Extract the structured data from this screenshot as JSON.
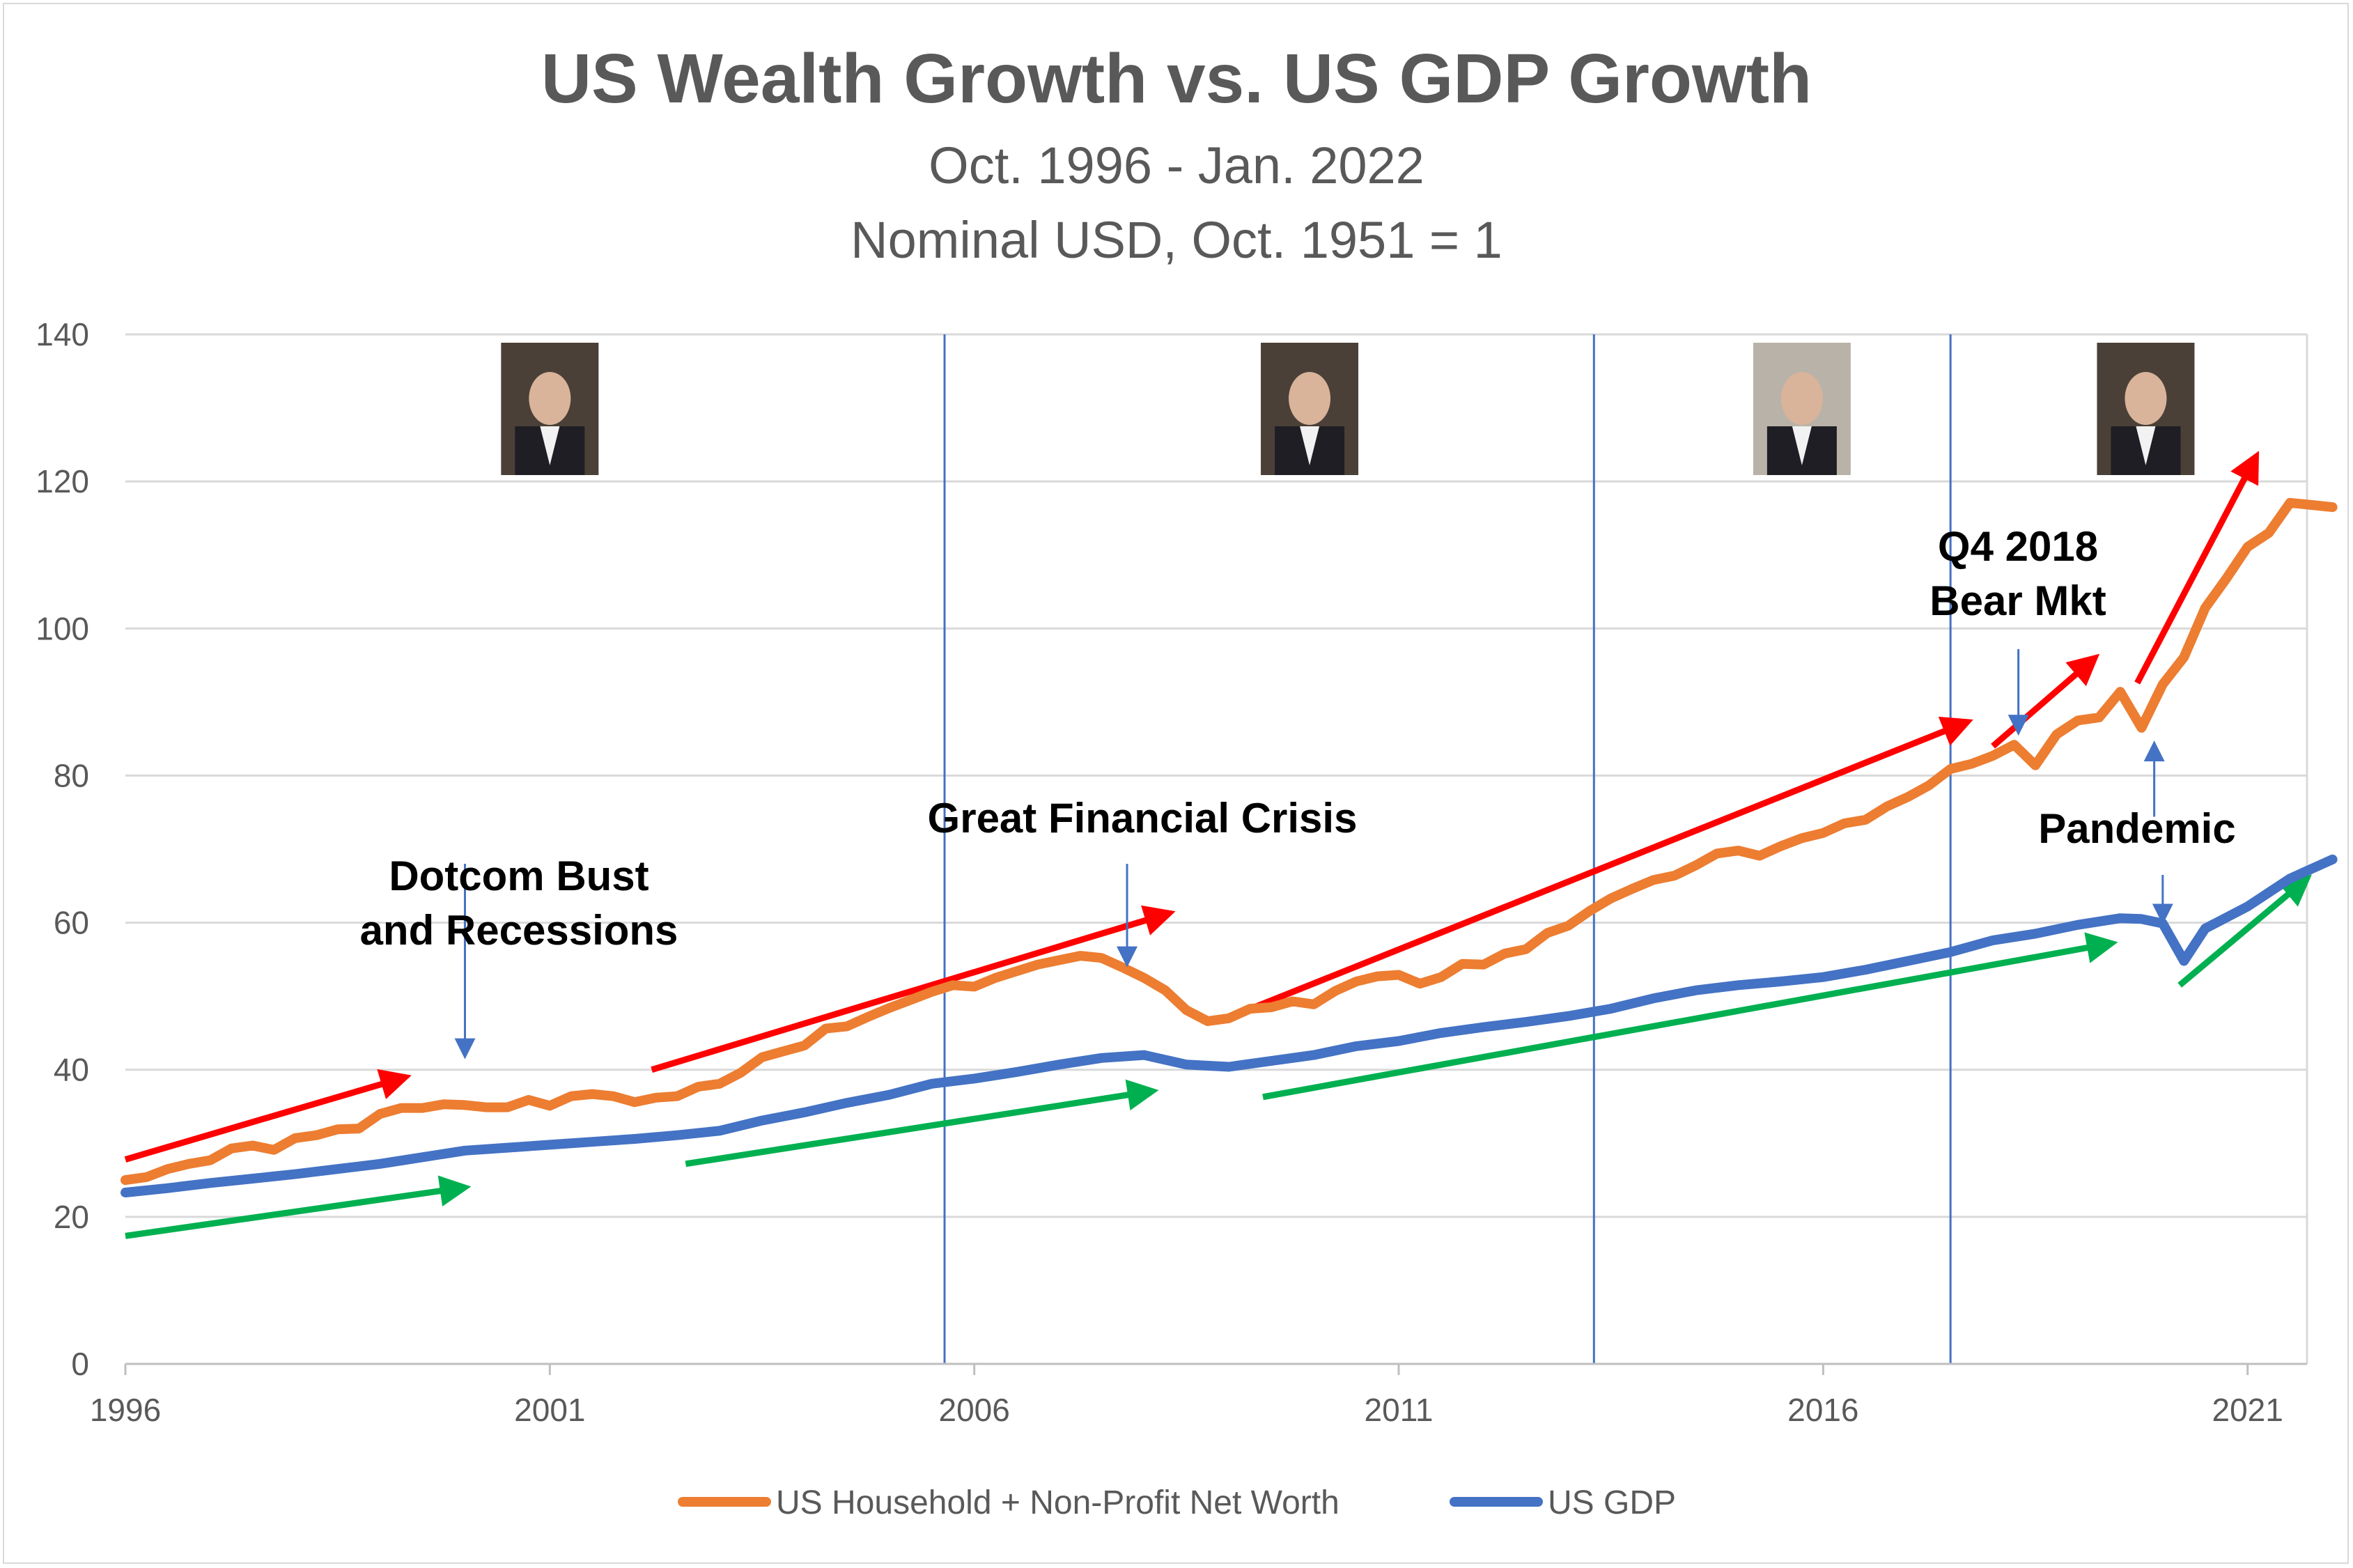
{
  "chart_data": {
    "type": "line",
    "title": "US Wealth Growth vs. US GDP Growth",
    "subtitle_lines": [
      "Oct. 1996 - Jan. 2022",
      "Nominal USD, Oct. 1951 = 1"
    ],
    "xlabel": "",
    "ylabel": "",
    "xlim": [
      1996.0,
      2021.7
    ],
    "ylim": [
      0,
      140
    ],
    "x_ticks": [
      1996,
      2001,
      2006,
      2011,
      2016,
      2021
    ],
    "x_tick_labels": [
      "1996",
      "2001",
      "2006",
      "2011",
      "2016",
      "2021"
    ],
    "y_ticks": [
      0,
      20,
      40,
      60,
      80,
      100,
      120,
      140
    ],
    "y_tick_labels": [
      "0",
      "20",
      "40",
      "60",
      "80",
      "100",
      "120",
      "140"
    ],
    "grid": "horizontal",
    "legend_position": "bottom",
    "era_dividers": [
      2005.65,
      2013.3,
      2017.5
    ],
    "series": [
      {
        "name": "US Household + Non-Profit Net Worth",
        "color": "#ED7D31",
        "points": [
          [
            1996.0,
            25.0
          ],
          [
            1996.25,
            25.4
          ],
          [
            1996.5,
            26.5
          ],
          [
            1996.75,
            27.2
          ],
          [
            1997.0,
            27.7
          ],
          [
            1997.25,
            29.3
          ],
          [
            1997.5,
            29.7
          ],
          [
            1997.75,
            29.1
          ],
          [
            1998.0,
            30.7
          ],
          [
            1998.25,
            31.1
          ],
          [
            1998.5,
            31.9
          ],
          [
            1998.75,
            32.0
          ],
          [
            1999.0,
            34.0
          ],
          [
            1999.25,
            34.8
          ],
          [
            1999.5,
            34.8
          ],
          [
            1999.75,
            35.3
          ],
          [
            2000.0,
            35.2
          ],
          [
            2000.25,
            34.9
          ],
          [
            2000.5,
            34.9
          ],
          [
            2000.75,
            35.9
          ],
          [
            2001.0,
            35.1
          ],
          [
            2001.25,
            36.4
          ],
          [
            2001.5,
            36.7
          ],
          [
            2001.75,
            36.4
          ],
          [
            2002.0,
            35.6
          ],
          [
            2002.25,
            36.2
          ],
          [
            2002.5,
            36.4
          ],
          [
            2002.75,
            37.7
          ],
          [
            2003.0,
            38.1
          ],
          [
            2003.25,
            39.6
          ],
          [
            2003.5,
            41.7
          ],
          [
            2003.75,
            42.5
          ],
          [
            2004.0,
            43.3
          ],
          [
            2004.25,
            45.6
          ],
          [
            2004.5,
            45.9
          ],
          [
            2004.75,
            47.2
          ],
          [
            2005.0,
            48.4
          ],
          [
            2005.25,
            49.5
          ],
          [
            2005.5,
            50.6
          ],
          [
            2005.75,
            51.5
          ],
          [
            2006.0,
            51.3
          ],
          [
            2006.25,
            52.5
          ],
          [
            2006.5,
            53.4
          ],
          [
            2006.75,
            54.3
          ],
          [
            2007.0,
            54.9
          ],
          [
            2007.25,
            55.5
          ],
          [
            2007.5,
            55.2
          ],
          [
            2007.75,
            53.9
          ],
          [
            2008.0,
            52.5
          ],
          [
            2008.25,
            50.8
          ],
          [
            2008.5,
            48.1
          ],
          [
            2008.75,
            46.6
          ],
          [
            2009.0,
            47.0
          ],
          [
            2009.25,
            48.3
          ],
          [
            2009.5,
            48.5
          ],
          [
            2009.75,
            49.3
          ],
          [
            2010.0,
            48.9
          ],
          [
            2010.25,
            50.7
          ],
          [
            2010.5,
            52.0
          ],
          [
            2010.75,
            52.7
          ],
          [
            2011.0,
            52.9
          ],
          [
            2011.25,
            51.7
          ],
          [
            2011.5,
            52.6
          ],
          [
            2011.75,
            54.4
          ],
          [
            2012.0,
            54.3
          ],
          [
            2012.25,
            55.8
          ],
          [
            2012.5,
            56.4
          ],
          [
            2012.75,
            58.6
          ],
          [
            2013.0,
            59.6
          ],
          [
            2013.25,
            61.6
          ],
          [
            2013.5,
            63.3
          ],
          [
            2013.75,
            64.6
          ],
          [
            2014.0,
            65.8
          ],
          [
            2014.25,
            66.4
          ],
          [
            2014.5,
            67.8
          ],
          [
            2014.75,
            69.4
          ],
          [
            2015.0,
            69.8
          ],
          [
            2015.25,
            69.1
          ],
          [
            2015.5,
            70.4
          ],
          [
            2015.75,
            71.5
          ],
          [
            2016.0,
            72.2
          ],
          [
            2016.25,
            73.5
          ],
          [
            2016.5,
            74.0
          ],
          [
            2016.75,
            75.8
          ],
          [
            2017.0,
            77.1
          ],
          [
            2017.25,
            78.7
          ],
          [
            2017.5,
            80.9
          ],
          [
            2017.75,
            81.6
          ],
          [
            2018.0,
            82.7
          ],
          [
            2018.25,
            84.2
          ],
          [
            2018.5,
            81.4
          ],
          [
            2018.75,
            85.6
          ],
          [
            2019.0,
            87.5
          ],
          [
            2019.25,
            87.9
          ],
          [
            2019.5,
            91.4
          ],
          [
            2019.75,
            86.5
          ],
          [
            2020.0,
            92.4
          ],
          [
            2020.25,
            96.1
          ],
          [
            2020.5,
            102.8
          ],
          [
            2020.75,
            106.8
          ],
          [
            2021.0,
            111.1
          ],
          [
            2021.25,
            113.0
          ],
          [
            2021.5,
            117.1
          ],
          [
            2021.75,
            116.8
          ],
          [
            2022.0,
            116.5
          ]
        ]
      },
      {
        "name": "US GDP",
        "color": "#4472C4",
        "points": [
          [
            1996.0,
            23.3
          ],
          [
            1996.5,
            23.9
          ],
          [
            1997.0,
            24.6
          ],
          [
            1997.5,
            25.2
          ],
          [
            1998.0,
            25.8
          ],
          [
            1998.5,
            26.5
          ],
          [
            1999.0,
            27.2
          ],
          [
            1999.5,
            28.1
          ],
          [
            2000.0,
            29.0
          ],
          [
            2000.5,
            29.4
          ],
          [
            2001.0,
            29.8
          ],
          [
            2001.5,
            30.2
          ],
          [
            2002.0,
            30.6
          ],
          [
            2002.5,
            31.1
          ],
          [
            2003.0,
            31.7
          ],
          [
            2003.5,
            33.1
          ],
          [
            2004.0,
            34.2
          ],
          [
            2004.5,
            35.5
          ],
          [
            2005.0,
            36.6
          ],
          [
            2005.5,
            38.1
          ],
          [
            2006.0,
            38.8
          ],
          [
            2006.5,
            39.7
          ],
          [
            2007.0,
            40.7
          ],
          [
            2007.5,
            41.6
          ],
          [
            2008.0,
            42.0
          ],
          [
            2008.5,
            40.7
          ],
          [
            2009.0,
            40.4
          ],
          [
            2009.5,
            41.2
          ],
          [
            2010.0,
            42.0
          ],
          [
            2010.5,
            43.2
          ],
          [
            2011.0,
            43.9
          ],
          [
            2011.5,
            45.0
          ],
          [
            2012.0,
            45.8
          ],
          [
            2012.5,
            46.5
          ],
          [
            2013.0,
            47.3
          ],
          [
            2013.5,
            48.3
          ],
          [
            2014.0,
            49.7
          ],
          [
            2014.5,
            50.8
          ],
          [
            2015.0,
            51.5
          ],
          [
            2015.5,
            52.0
          ],
          [
            2016.0,
            52.6
          ],
          [
            2016.5,
            53.6
          ],
          [
            2017.0,
            54.8
          ],
          [
            2017.5,
            56.0
          ],
          [
            2018.0,
            57.6
          ],
          [
            2018.5,
            58.5
          ],
          [
            2019.0,
            59.7
          ],
          [
            2019.5,
            60.6
          ],
          [
            2019.75,
            60.5
          ],
          [
            2020.0,
            59.9
          ],
          [
            2020.25,
            54.8
          ],
          [
            2020.5,
            59.2
          ],
          [
            2021.0,
            62.2
          ],
          [
            2021.5,
            66.0
          ],
          [
            2022.0,
            68.6
          ]
        ]
      }
    ],
    "annotations": [
      {
        "lines": [
          "Dotcom Bust",
          "and Recessions"
        ]
      },
      {
        "lines": [
          "Great Financial Crisis"
        ]
      },
      {
        "lines": [
          "Q4 2018",
          "Bear Mkt"
        ]
      },
      {
        "lines": [
          "Pandemic"
        ]
      }
    ]
  }
}
